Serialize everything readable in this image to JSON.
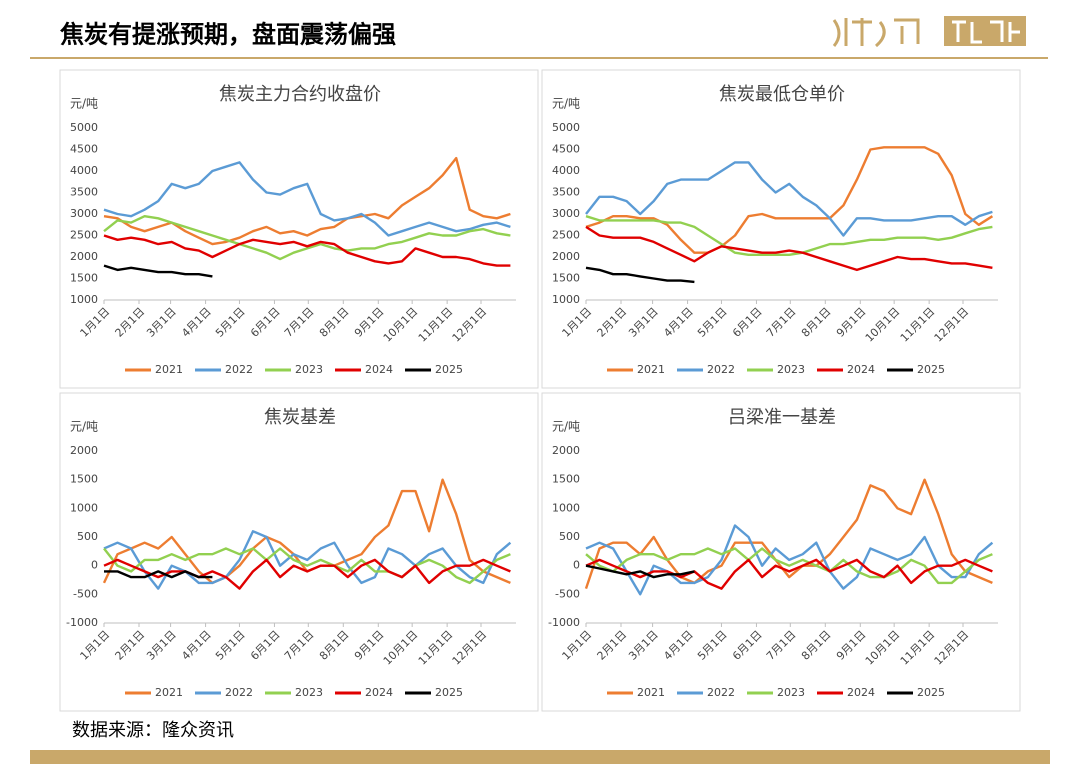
{
  "title": "焦炭有提涨预期，盘面震荡偏强",
  "source": "数据来源：隆众资讯",
  "chart_data": [
    {
      "type": "line",
      "title": "焦炭主力合约收盘价",
      "y_label": "元/吨",
      "grid": false,
      "legend": "bottom",
      "x": [
        0,
        12,
        24,
        36,
        48,
        60,
        72,
        84,
        96,
        108,
        120,
        132,
        144,
        156,
        168,
        180,
        192,
        204,
        216,
        228,
        240,
        252,
        264,
        276,
        288,
        300,
        312,
        324,
        336,
        348,
        360
      ],
      "xlim": [
        0,
        365
      ],
      "xticks": [
        {
          "value": 0,
          "label": "1月1日"
        },
        {
          "value": 31,
          "label": "2月1日"
        },
        {
          "value": 59,
          "label": "3月1日"
        },
        {
          "value": 90,
          "label": "4月1日"
        },
        {
          "value": 120,
          "label": "5月1日"
        },
        {
          "value": 151,
          "label": "6月1日"
        },
        {
          "value": 181,
          "label": "7月1日"
        },
        {
          "value": 212,
          "label": "8月1日"
        },
        {
          "value": 243,
          "label": "9月1日"
        },
        {
          "value": 273,
          "label": "10月1日"
        },
        {
          "value": 304,
          "label": "11月1日"
        },
        {
          "value": 334,
          "label": "12月1日"
        }
      ],
      "ylim": [
        1000,
        5000
      ],
      "yticks": [
        1000,
        1500,
        2000,
        2500,
        3000,
        3500,
        4000,
        4500,
        5000
      ],
      "series": [
        {
          "name": "2021",
          "color": "#ed7d31",
          "values": [
            2950,
            2900,
            2700,
            2600,
            2700,
            2800,
            2600,
            2450,
            2300,
            2350,
            2450,
            2600,
            2700,
            2550,
            2600,
            2500,
            2650,
            2700,
            2900,
            2950,
            3000,
            2900,
            3200,
            3400,
            3600,
            3900,
            4300,
            3100,
            2950,
            2900,
            3000
          ]
        },
        {
          "name": "2022",
          "color": "#5b9bd5",
          "values": [
            3100,
            3000,
            2950,
            3100,
            3300,
            3700,
            3600,
            3700,
            4000,
            4100,
            4200,
            3800,
            3500,
            3450,
            3600,
            3700,
            3000,
            2850,
            2900,
            3000,
            2800,
            2500,
            2600,
            2700,
            2800,
            2700,
            2600,
            2650,
            2750,
            2800,
            2700
          ]
        },
        {
          "name": "2023",
          "color": "#92d050",
          "values": [
            2600,
            2850,
            2800,
            2950,
            2900,
            2800,
            2700,
            2600,
            2500,
            2400,
            2300,
            2200,
            2100,
            1950,
            2100,
            2200,
            2300,
            2200,
            2150,
            2200,
            2200,
            2300,
            2350,
            2450,
            2550,
            2500,
            2500,
            2600,
            2650,
            2550,
            2500
          ]
        },
        {
          "name": "2024",
          "color": "#e00000",
          "values": [
            2500,
            2400,
            2450,
            2400,
            2300,
            2350,
            2200,
            2150,
            2000,
            2150,
            2300,
            2400,
            2350,
            2300,
            2350,
            2250,
            2350,
            2300,
            2100,
            2000,
            1900,
            1850,
            1900,
            2200,
            2100,
            2000,
            2000,
            1950,
            1850,
            1800,
            1800
          ]
        },
        {
          "name": "2025",
          "color": "#000000",
          "values": [
            1800,
            1700,
            1750,
            1700,
            1650,
            1650,
            1600,
            1600,
            1550,
            null,
            null,
            null,
            null,
            null,
            null,
            null,
            null,
            null,
            null,
            null,
            null,
            null,
            null,
            null,
            null,
            null,
            null,
            null,
            null,
            null,
            null
          ]
        }
      ]
    },
    {
      "type": "line",
      "title": "焦炭最低仓单价",
      "y_label": "元/吨",
      "grid": false,
      "legend": "bottom",
      "x": [
        0,
        12,
        24,
        36,
        48,
        60,
        72,
        84,
        96,
        108,
        120,
        132,
        144,
        156,
        168,
        180,
        192,
        204,
        216,
        228,
        240,
        252,
        264,
        276,
        288,
        300,
        312,
        324,
        336,
        348,
        360
      ],
      "xlim": [
        0,
        365
      ],
      "xticks": [
        {
          "value": 0,
          "label": "1月1日"
        },
        {
          "value": 31,
          "label": "2月1日"
        },
        {
          "value": 59,
          "label": "3月1日"
        },
        {
          "value": 90,
          "label": "4月1日"
        },
        {
          "value": 120,
          "label": "5月1日"
        },
        {
          "value": 151,
          "label": "6月1日"
        },
        {
          "value": 181,
          "label": "7月1日"
        },
        {
          "value": 212,
          "label": "8月1日"
        },
        {
          "value": 243,
          "label": "9月1日"
        },
        {
          "value": 273,
          "label": "10月1日"
        },
        {
          "value": 304,
          "label": "11月1日"
        },
        {
          "value": 334,
          "label": "12月1日"
        }
      ],
      "ylim": [
        1000,
        5000
      ],
      "yticks": [
        1000,
        1500,
        2000,
        2500,
        3000,
        3500,
        4000,
        4500,
        5000
      ],
      "series": [
        {
          "name": "2021",
          "color": "#ed7d31",
          "values": [
            2700,
            2800,
            2950,
            2950,
            2900,
            2900,
            2750,
            2400,
            2100,
            2100,
            2250,
            2500,
            2950,
            3000,
            2900,
            2900,
            2900,
            2900,
            2900,
            3200,
            3800,
            4500,
            4550,
            4550,
            4550,
            4550,
            4400,
            3900,
            3000,
            2750,
            2950
          ]
        },
        {
          "name": "2022",
          "color": "#5b9bd5",
          "values": [
            3000,
            3400,
            3400,
            3300,
            3000,
            3300,
            3700,
            3800,
            3800,
            3800,
            4000,
            4200,
            4200,
            3800,
            3500,
            3700,
            3400,
            3200,
            2900,
            2500,
            2900,
            2900,
            2850,
            2850,
            2850,
            2900,
            2950,
            2950,
            2750,
            2950,
            3050
          ]
        },
        {
          "name": "2023",
          "color": "#92d050",
          "values": [
            2950,
            2850,
            2850,
            2850,
            2850,
            2850,
            2800,
            2800,
            2700,
            2500,
            2300,
            2100,
            2050,
            2050,
            2050,
            2050,
            2100,
            2200,
            2300,
            2300,
            2350,
            2400,
            2400,
            2450,
            2450,
            2450,
            2400,
            2450,
            2550,
            2650,
            2700
          ]
        },
        {
          "name": "2024",
          "color": "#e00000",
          "values": [
            2700,
            2500,
            2450,
            2450,
            2450,
            2350,
            2200,
            2050,
            1900,
            2100,
            2250,
            2200,
            2150,
            2100,
            2100,
            2150,
            2100,
            2000,
            1900,
            1800,
            1700,
            1800,
            1900,
            2000,
            1950,
            1950,
            1900,
            1850,
            1850,
            1800,
            1750
          ]
        },
        {
          "name": "2025",
          "color": "#000000",
          "values": [
            1750,
            1700,
            1600,
            1600,
            1550,
            1500,
            1450,
            1450,
            1420,
            null,
            null,
            null,
            null,
            null,
            null,
            null,
            null,
            null,
            null,
            null,
            null,
            null,
            null,
            null,
            null,
            null,
            null,
            null,
            null,
            null,
            null
          ]
        }
      ]
    },
    {
      "type": "line",
      "title": "焦炭基差",
      "y_label": "元/吨",
      "grid": false,
      "legend": "bottom",
      "x": [
        0,
        12,
        24,
        36,
        48,
        60,
        72,
        84,
        96,
        108,
        120,
        132,
        144,
        156,
        168,
        180,
        192,
        204,
        216,
        228,
        240,
        252,
        264,
        276,
        288,
        300,
        312,
        324,
        336,
        348,
        360
      ],
      "xlim": [
        0,
        365
      ],
      "xticks": [
        {
          "value": 0,
          "label": "1月1日"
        },
        {
          "value": 31,
          "label": "2月1日"
        },
        {
          "value": 59,
          "label": "3月1日"
        },
        {
          "value": 90,
          "label": "4月1日"
        },
        {
          "value": 120,
          "label": "5月1日"
        },
        {
          "value": 151,
          "label": "6月1日"
        },
        {
          "value": 181,
          "label": "7月1日"
        },
        {
          "value": 212,
          "label": "8月1日"
        },
        {
          "value": 243,
          "label": "9月1日"
        },
        {
          "value": 273,
          "label": "10月1日"
        },
        {
          "value": 304,
          "label": "11月1日"
        },
        {
          "value": 334,
          "label": "12月1日"
        }
      ],
      "ylim": [
        -1000,
        2000
      ],
      "yticks": [
        -1000,
        -500,
        0,
        500,
        1000,
        1500,
        2000
      ],
      "series": [
        {
          "name": "2021",
          "color": "#ed7d31",
          "values": [
            -300,
            200,
            300,
            400,
            300,
            500,
            200,
            -100,
            -300,
            -200,
            0,
            300,
            500,
            400,
            200,
            -100,
            0,
            0,
            100,
            200,
            500,
            700,
            1300,
            1300,
            600,
            1500,
            900,
            100,
            -100,
            -200,
            -300
          ]
        },
        {
          "name": "2022",
          "color": "#5b9bd5",
          "values": [
            300,
            400,
            300,
            -100,
            -400,
            0,
            -100,
            -300,
            -300,
            -200,
            100,
            600,
            500,
            0,
            200,
            100,
            300,
            400,
            0,
            -300,
            -200,
            300,
            200,
            0,
            200,
            300,
            0,
            -200,
            -300,
            200,
            400
          ]
        },
        {
          "name": "2023",
          "color": "#92d050",
          "values": [
            300,
            0,
            -100,
            100,
            100,
            200,
            100,
            200,
            200,
            300,
            200,
            300,
            100,
            300,
            100,
            0,
            100,
            0,
            -100,
            100,
            -100,
            -100,
            -200,
            0,
            100,
            0,
            -200,
            -300,
            -100,
            100,
            200
          ]
        },
        {
          "name": "2024",
          "color": "#e00000",
          "values": [
            0,
            100,
            0,
            -100,
            -200,
            -100,
            -100,
            -200,
            -100,
            -200,
            -400,
            -100,
            100,
            -200,
            0,
            -100,
            0,
            0,
            -200,
            0,
            100,
            -100,
            -200,
            0,
            -300,
            -100,
            0,
            0,
            100,
            0,
            -100
          ]
        },
        {
          "name": "2025",
          "color": "#000000",
          "values": [
            -100,
            -100,
            -200,
            -200,
            -100,
            -200,
            -100,
            -200,
            -200,
            null,
            null,
            null,
            null,
            null,
            null,
            null,
            null,
            null,
            null,
            null,
            null,
            null,
            null,
            null,
            null,
            null,
            null,
            null,
            null,
            null,
            null
          ]
        }
      ]
    },
    {
      "type": "line",
      "title": "吕梁准一基差",
      "y_label": "元/吨",
      "grid": false,
      "legend": "bottom",
      "x": [
        0,
        12,
        24,
        36,
        48,
        60,
        72,
        84,
        96,
        108,
        120,
        132,
        144,
        156,
        168,
        180,
        192,
        204,
        216,
        228,
        240,
        252,
        264,
        276,
        288,
        300,
        312,
        324,
        336,
        348,
        360
      ],
      "xlim": [
        0,
        365
      ],
      "xticks": [
        {
          "value": 0,
          "label": "1月1日"
        },
        {
          "value": 31,
          "label": "2月1日"
        },
        {
          "value": 59,
          "label": "3月1日"
        },
        {
          "value": 90,
          "label": "4月1日"
        },
        {
          "value": 120,
          "label": "5月1日"
        },
        {
          "value": 151,
          "label": "6月1日"
        },
        {
          "value": 181,
          "label": "7月1日"
        },
        {
          "value": 212,
          "label": "8月1日"
        },
        {
          "value": 243,
          "label": "9月1日"
        },
        {
          "value": 273,
          "label": "10月1日"
        },
        {
          "value": 304,
          "label": "11月1日"
        },
        {
          "value": 334,
          "label": "12月1日"
        }
      ],
      "ylim": [
        -1000,
        2000
      ],
      "yticks": [
        -1000,
        -500,
        0,
        500,
        1000,
        1500,
        2000
      ],
      "series": [
        {
          "name": "2021",
          "color": "#ed7d31",
          "values": [
            -400,
            300,
            400,
            400,
            200,
            500,
            100,
            -200,
            -300,
            -100,
            0,
            400,
            400,
            400,
            100,
            -200,
            0,
            0,
            200,
            500,
            800,
            1400,
            1300,
            1000,
            900,
            1500,
            900,
            200,
            -100,
            -200,
            -300
          ]
        },
        {
          "name": "2022",
          "color": "#5b9bd5",
          "values": [
            300,
            400,
            300,
            -100,
            -500,
            0,
            -100,
            -300,
            -300,
            -200,
            100,
            700,
            500,
            0,
            300,
            100,
            200,
            400,
            -100,
            -400,
            -200,
            300,
            200,
            100,
            200,
            500,
            0,
            -200,
            -200,
            200,
            400
          ]
        },
        {
          "name": "2023",
          "color": "#92d050",
          "values": [
            200,
            0,
            -100,
            100,
            200,
            200,
            100,
            200,
            200,
            300,
            200,
            300,
            100,
            300,
            100,
            0,
            100,
            0,
            -100,
            100,
            -100,
            -200,
            -200,
            -100,
            100,
            0,
            -300,
            -300,
            -100,
            100,
            200
          ]
        },
        {
          "name": "2024",
          "color": "#e00000",
          "values": [
            0,
            100,
            0,
            -100,
            -200,
            -100,
            -100,
            -200,
            -100,
            -300,
            -400,
            -100,
            100,
            -200,
            0,
            -100,
            0,
            100,
            -100,
            0,
            100,
            -100,
            -200,
            0,
            -300,
            -100,
            0,
            0,
            100,
            0,
            -100
          ]
        },
        {
          "name": "2025",
          "color": "#000000",
          "values": [
            0,
            -50,
            -100,
            -150,
            -100,
            -200,
            -150,
            -150,
            -100,
            null,
            null,
            null,
            null,
            null,
            null,
            null,
            null,
            null,
            null,
            null,
            null,
            null,
            null,
            null,
            null,
            null,
            null,
            null,
            null,
            null,
            null
          ]
        }
      ]
    }
  ]
}
